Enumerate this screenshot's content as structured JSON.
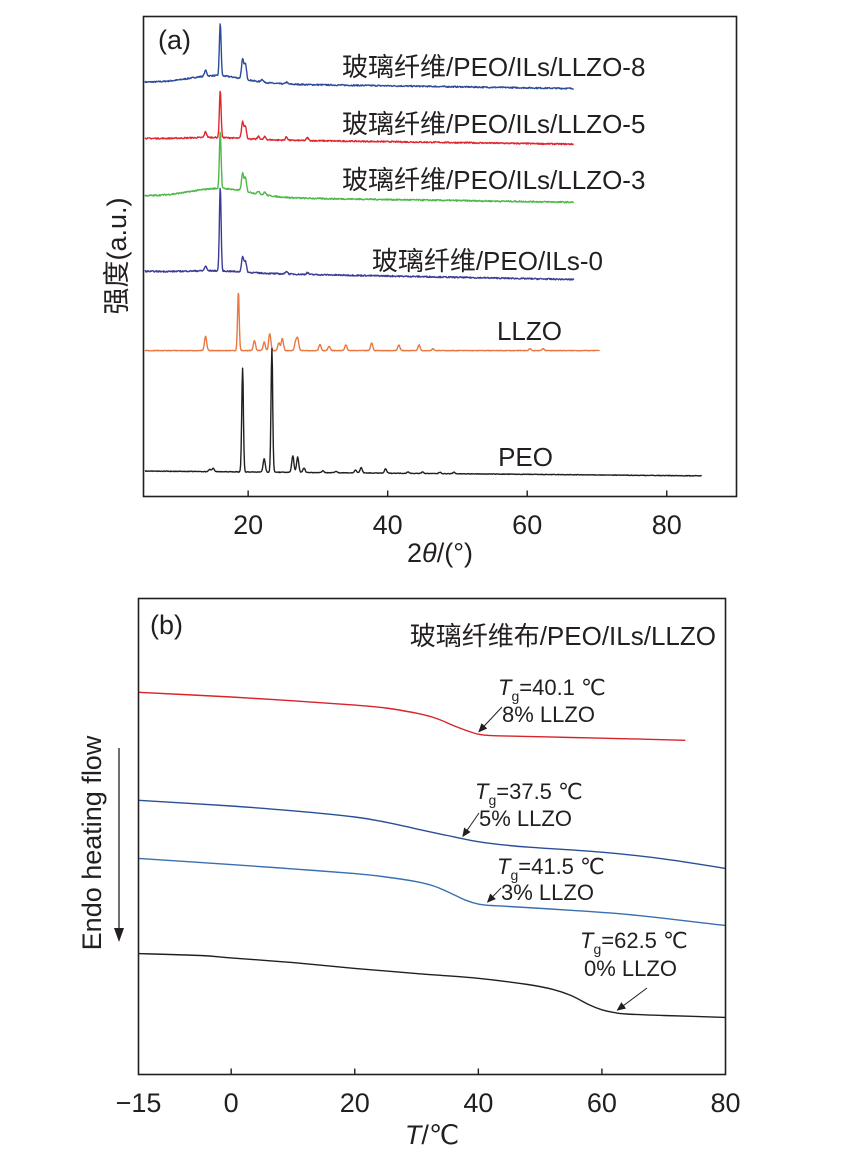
{
  "chart_data": [
    {
      "panel": "(a)",
      "type": "line",
      "title": "",
      "xlabel": "2θ/(°)",
      "ylabel": "强度(a.u.)",
      "xlim": [
        5,
        90
      ],
      "ylim": [
        0,
        100
      ],
      "xticks": [
        20,
        40,
        60,
        80
      ],
      "yticks": [],
      "grid": false,
      "legend": "inline labels right of each curve",
      "series": [
        {
          "name": "玻璃纤维/PEO/ILs/LLZO-8",
          "color": "#2b4c9b",
          "x_end": 66.7,
          "baseline_start": 86.3,
          "baseline_end": 85.0,
          "peaks": [
            [
              13.9,
              1.2
            ],
            [
              16.0,
              11.0
            ],
            [
              19.2,
              4.0
            ],
            [
              19.6,
              3.2
            ],
            [
              22.0,
              0.6
            ],
            [
              25.5,
              0.4
            ]
          ],
          "hump": [
            [
              10,
              21
            ],
            [
              1.6,
              1.8
            ]
          ]
        },
        {
          "name": "玻璃纤维/PEO/ILs/LLZO-5",
          "color": "#e1262f",
          "x_end": 66.7,
          "baseline_start": 74.6,
          "baseline_end": 73.4,
          "peaks": [
            [
              13.9,
              1.2
            ],
            [
              16.0,
              9.8
            ],
            [
              19.2,
              3.4
            ],
            [
              19.6,
              2.6
            ],
            [
              21.5,
              0.6
            ],
            [
              22.4,
              0.6
            ],
            [
              25.5,
              0.7
            ],
            [
              28.5,
              0.6
            ]
          ],
          "hump": [
            [
              10,
              21
            ],
            [
              0.4,
              0.4
            ]
          ]
        },
        {
          "name": "玻璃纤维/PEO/ILs/LLZO-3",
          "color": "#4cb848",
          "x_end": 66.7,
          "baseline_start": 62.6,
          "baseline_end": 61.3,
          "peaks": [
            [
              16.0,
              11.9
            ],
            [
              19.2,
              3.6
            ],
            [
              19.6,
              2.8
            ],
            [
              21.5,
              0.6
            ],
            [
              22.4,
              0.6
            ]
          ],
          "hump": [
            [
              10,
              22
            ],
            [
              1.8,
              2.1
            ]
          ]
        },
        {
          "name": "玻璃纤维/PEO/ILs-0",
          "color": "#3b3b96",
          "x_end": 66.7,
          "baseline_start": 46.9,
          "baseline_end": 45.2,
          "peaks": [
            [
              13.9,
              1.0
            ],
            [
              16.0,
              17.5
            ],
            [
              19.2,
              3.1
            ],
            [
              19.6,
              2.3
            ],
            [
              25.5,
              0.6
            ],
            [
              28.5,
              0.4
            ]
          ],
          "hump": [
            [
              10,
              21
            ],
            [
              0.4,
              0.4
            ]
          ]
        },
        {
          "name": "LLZO",
          "color": "#ea7740",
          "x_end": 70.4,
          "baseline_start": 30.4,
          "baseline_end": 30.4,
          "peaks": [
            [
              13.9,
              3.0
            ],
            [
              18.6,
              12.3
            ],
            [
              20.9,
              2.1
            ],
            [
              22.3,
              1.8
            ],
            [
              23.1,
              3.5
            ],
            [
              24.4,
              1.6
            ],
            [
              24.9,
              2.5
            ],
            [
              26.8,
              1.7
            ],
            [
              27.1,
              2.5
            ],
            [
              30.3,
              1.3
            ],
            [
              31.6,
              0.9
            ],
            [
              34.0,
              1.2
            ],
            [
              37.7,
              1.6
            ],
            [
              41.6,
              1.2
            ],
            [
              44.5,
              1.2
            ],
            [
              46.5,
              0.4
            ],
            [
              60.4,
              0.4
            ],
            [
              62.3,
              0.4
            ]
          ],
          "hump": [
            [
              0,
              0
            ],
            [
              0,
              0
            ]
          ]
        },
        {
          "name": "PEO",
          "color": "#231f20",
          "x_end": 85.0,
          "baseline_start": 5.3,
          "baseline_end": 4.3,
          "peaks": [
            [
              14.5,
              0.5
            ],
            [
              15.0,
              0.7
            ],
            [
              19.2,
              21.6
            ],
            [
              22.3,
              2.8
            ],
            [
              23.4,
              25.8
            ],
            [
              26.4,
              3.4
            ],
            [
              27.1,
              3.2
            ],
            [
              28.0,
              0.9
            ],
            [
              30.7,
              0.4
            ],
            [
              32.6,
              0.3
            ],
            [
              35.4,
              0.6
            ],
            [
              36.2,
              1.1
            ],
            [
              39.7,
              0.9
            ],
            [
              42.9,
              0.3
            ],
            [
              45.0,
              0.3
            ],
            [
              47.5,
              0.3
            ],
            [
              49.5,
              0.3
            ]
          ],
          "hump": [
            [
              0,
              0
            ],
            [
              0,
              0
            ]
          ]
        }
      ],
      "annotations": []
    },
    {
      "panel": "(b)",
      "type": "line",
      "title": "玻璃纤维布/PEO/ILs/LLZO",
      "xlabel": "T/℃",
      "ylabel": "Endo heating flow",
      "ylabel_arrow": "down",
      "xlim": [
        -15,
        80
      ],
      "ylim": [
        0,
        100
      ],
      "xticks": [
        -15,
        0,
        20,
        40,
        60,
        80
      ],
      "xticklabels": [
        "−15",
        "0",
        "20",
        "40",
        "60",
        "80"
      ],
      "yticks": [],
      "grid": false,
      "series": [
        {
          "name": "8% LLZO",
          "color": "#d9232b",
          "x": [
            -15,
            0,
            10,
            20,
            25,
            30,
            33,
            36,
            38,
            40,
            42,
            45,
            55,
            65,
            73.5
          ],
          "y": [
            80.3,
            79.3,
            78.5,
            77.6,
            77.0,
            75.9,
            74.9,
            73.3,
            72.3,
            71.5,
            71.2,
            71.1,
            70.8,
            70.5,
            70.2
          ]
        },
        {
          "name": "5% LLZO",
          "color": "#2b4f96",
          "x": [
            -15,
            0,
            10,
            20,
            25,
            30,
            35,
            40,
            45,
            50,
            60,
            70,
            80
          ],
          "y": [
            57.6,
            56.4,
            55.4,
            54.1,
            53.0,
            51.6,
            50.2,
            48.9,
            48.1,
            47.6,
            46.7,
            45.3,
            43.3
          ]
        },
        {
          "name": "3% LLZO",
          "color": "#3a6fb0",
          "x": [
            -15,
            0,
            10,
            20,
            25,
            30,
            33,
            36,
            38,
            40,
            42,
            45,
            55,
            65,
            80
          ],
          "y": [
            45.4,
            44.1,
            43.2,
            42.2,
            41.5,
            40.5,
            39.5,
            37.8,
            36.6,
            35.8,
            35.5,
            35.3,
            34.5,
            33.5,
            31.3
          ]
        },
        {
          "name": "0% LLZO",
          "color": "#231f20",
          "x": [
            -15,
            -5,
            0,
            10,
            20,
            30,
            40,
            48,
            52,
            55,
            58,
            60,
            62,
            64,
            70,
            80
          ],
          "y": [
            25.4,
            25.0,
            24.5,
            23.5,
            22.3,
            21.2,
            20.2,
            18.9,
            17.9,
            16.6,
            14.6,
            13.6,
            13.0,
            12.7,
            12.4,
            12.0
          ]
        }
      ],
      "annotations": [
        {
          "tg_prefix": "T",
          "tg_sub": "g",
          "tg_value": "=40.1 ℃",
          "sample": "8% LLZO",
          "points_to": [
            40.1,
            71.4
          ]
        },
        {
          "tg_prefix": "T",
          "tg_sub": "g",
          "tg_value": "=37.5 ℃",
          "sample": "5% LLZO",
          "points_to": [
            37.5,
            49.4
          ]
        },
        {
          "tg_prefix": "T",
          "tg_sub": "g",
          "tg_value": "=41.5 ℃",
          "sample": "3% LLZO",
          "points_to": [
            41.5,
            35.6
          ]
        },
        {
          "tg_prefix": "T",
          "tg_sub": "g",
          "tg_value": "=62.5 ℃",
          "sample": "0% LLZO",
          "points_to": [
            62.5,
            12.9
          ]
        }
      ]
    }
  ],
  "labels": {
    "a_panel": "(a)",
    "a_xlabel_num": "2",
    "a_xlabel_theta": "θ",
    "a_xlabel_unit": "/(°)",
    "a_ylabel": "强度(a.u.)",
    "b_panel": "(b)",
    "b_title": "玻璃纤维布/PEO/ILs/LLZO",
    "b_xlabel_T": "T",
    "b_xlabel_unit": "/℃",
    "b_ylabel": "Endo heating flow"
  }
}
